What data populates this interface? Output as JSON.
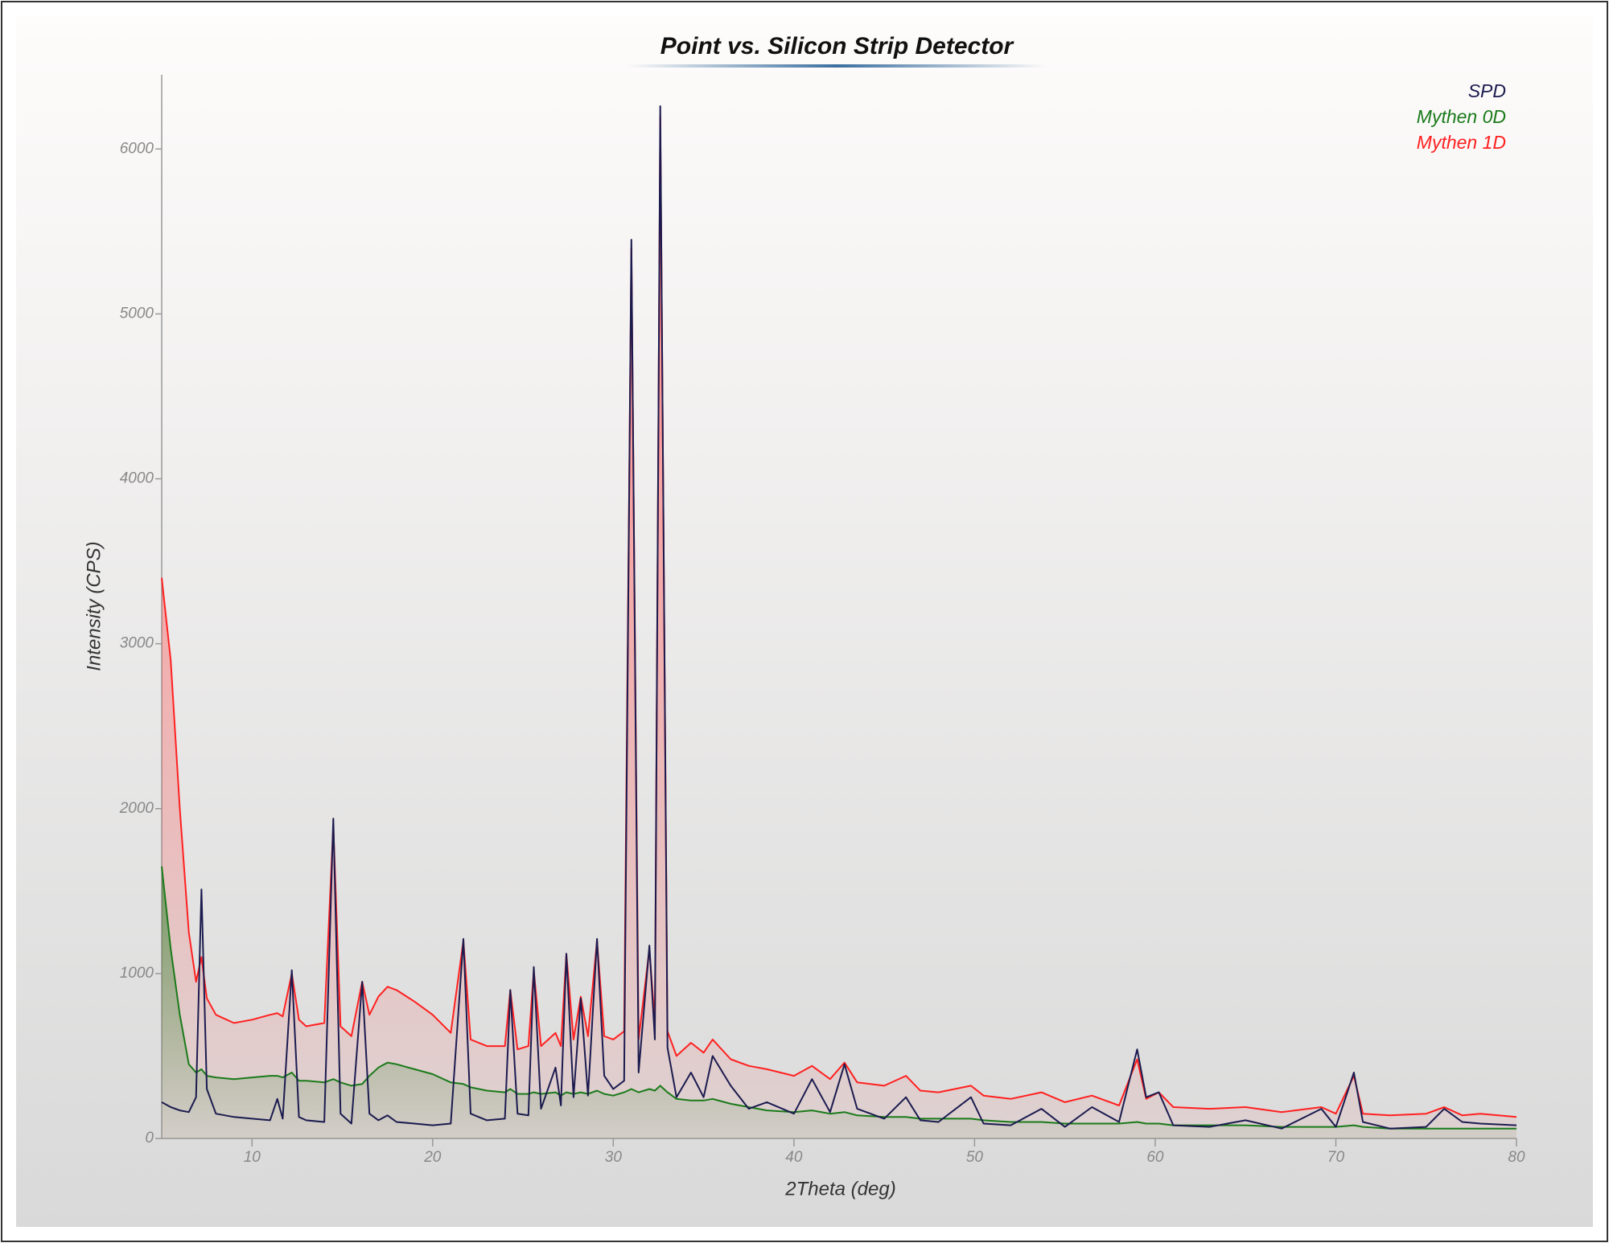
{
  "chart_data": {
    "type": "line",
    "title": "Point vs. Silicon Strip Detector",
    "x_label": "2Theta (deg)",
    "y_label": "Intensity (CPS)",
    "legend": "top-right",
    "xlim": [
      5,
      80
    ],
    "ylim": [
      0,
      6450
    ],
    "xticks": [
      10,
      20,
      30,
      40,
      50,
      60,
      70,
      80
    ],
    "yticks": [
      0,
      1000,
      2000,
      3000,
      4000,
      5000,
      6000
    ],
    "x": [
      5,
      5.5,
      6,
      6.5,
      6.9,
      7.2,
      7.5,
      8,
      9,
      10,
      11,
      11.4,
      11.7,
      12.2,
      12.6,
      13,
      14,
      14.5,
      14.9,
      15.5,
      16.1,
      16.5,
      17,
      17.5,
      18,
      19,
      20,
      21,
      21.7,
      22.1,
      23,
      24,
      24.3,
      24.7,
      25.3,
      25.6,
      26,
      26.8,
      27.1,
      27.4,
      27.8,
      28.2,
      28.6,
      29.1,
      29.5,
      30,
      30.6,
      31.0,
      31.4,
      32.0,
      32.3,
      32.6,
      33.0,
      33.5,
      34.3,
      35,
      35.5,
      36.5,
      37.5,
      38.5,
      40,
      41,
      42,
      42.8,
      43.5,
      45,
      46.2,
      47,
      48,
      49.8,
      50.5,
      52,
      53.7,
      55,
      56.5,
      58,
      59.0,
      59.5,
      60.2,
      61,
      63,
      65,
      67,
      69.2,
      70,
      71.0,
      71.5,
      73,
      75,
      76,
      77,
      78,
      80
    ],
    "series": [
      {
        "name": "SPD",
        "color": "#1b1b4f",
        "fill": false,
        "values": [
          220,
          190,
          170,
          160,
          250,
          1510,
          300,
          150,
          130,
          120,
          110,
          240,
          120,
          1020,
          130,
          110,
          100,
          1940,
          150,
          90,
          950,
          150,
          110,
          140,
          100,
          90,
          80,
          90,
          1210,
          150,
          110,
          120,
          900,
          150,
          140,
          1040,
          180,
          430,
          200,
          1120,
          250,
          850,
          260,
          1210,
          380,
          300,
          350,
          5450,
          400,
          1170,
          600,
          6260,
          550,
          250,
          400,
          250,
          500,
          320,
          180,
          220,
          150,
          360,
          160,
          450,
          180,
          120,
          250,
          110,
          100,
          250,
          90,
          80,
          180,
          70,
          190,
          100,
          540,
          250,
          280,
          80,
          70,
          110,
          60,
          180,
          70,
          400,
          100,
          60,
          70,
          180,
          100,
          90,
          80
        ]
      },
      {
        "name": "Mythen 0D",
        "color": "#1a7a1a",
        "fill": true,
        "values": [
          1650,
          1150,
          750,
          450,
          400,
          420,
          380,
          370,
          360,
          370,
          380,
          380,
          370,
          400,
          350,
          350,
          340,
          360,
          340,
          320,
          330,
          380,
          430,
          460,
          450,
          420,
          390,
          340,
          330,
          310,
          290,
          280,
          300,
          270,
          270,
          280,
          270,
          280,
          260,
          280,
          270,
          280,
          270,
          290,
          270,
          260,
          280,
          300,
          280,
          300,
          290,
          320,
          280,
          240,
          230,
          230,
          240,
          210,
          190,
          170,
          160,
          170,
          150,
          160,
          140,
          130,
          130,
          120,
          120,
          120,
          110,
          100,
          100,
          90,
          90,
          90,
          100,
          90,
          90,
          80,
          80,
          80,
          70,
          70,
          70,
          80,
          70,
          60,
          60,
          60,
          60,
          60,
          60
        ]
      },
      {
        "name": "Mythen 1D",
        "color": "#ff2020",
        "fill": true,
        "values": [
          3400,
          2900,
          2000,
          1250,
          950,
          1100,
          850,
          750,
          700,
          720,
          750,
          760,
          740,
          1000,
          720,
          680,
          700,
          1900,
          680,
          620,
          950,
          750,
          860,
          920,
          900,
          830,
          750,
          640,
          1200,
          600,
          560,
          560,
          900,
          540,
          560,
          1020,
          560,
          640,
          560,
          1120,
          600,
          860,
          620,
          1200,
          620,
          600,
          650,
          5400,
          600,
          1150,
          700,
          6200,
          650,
          500,
          580,
          520,
          600,
          480,
          440,
          420,
          380,
          440,
          360,
          460,
          340,
          320,
          380,
          290,
          280,
          320,
          260,
          240,
          280,
          220,
          260,
          200,
          480,
          240,
          280,
          190,
          180,
          190,
          160,
          190,
          150,
          380,
          150,
          140,
          150,
          190,
          140,
          150,
          130
        ]
      }
    ]
  }
}
